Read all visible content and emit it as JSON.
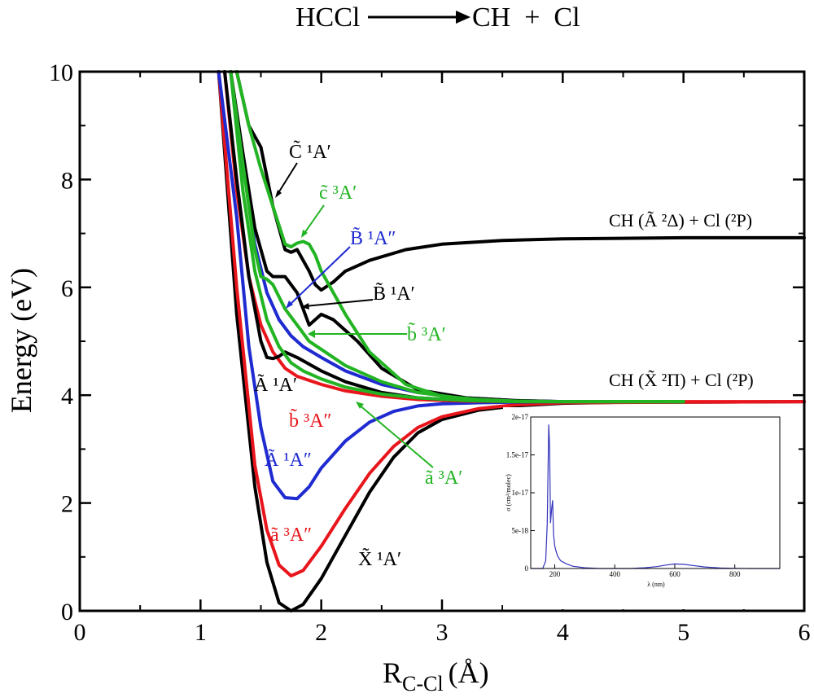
{
  "chart_data": {
    "type": "line",
    "title": "HCCl ⟶ CH + Cl",
    "title_parts": {
      "reactant": "HCCl",
      "products": "CH  +  Cl"
    },
    "xlabel": {
      "main": "R",
      "sub": "C-Cl",
      "unit": "(Å)"
    },
    "ylabel": "Energy (eV)",
    "xlim": [
      0,
      6
    ],
    "ylim": [
      0,
      10
    ],
    "xticks": [
      "0",
      "1",
      "2",
      "3",
      "4",
      "5",
      "6"
    ],
    "yticks": [
      "0",
      "2",
      "4",
      "6",
      "8",
      "10"
    ],
    "grid": false,
    "colors": {
      "black": "#000000",
      "blue": "#1f2bd1",
      "red": "#e8161c",
      "green": "#22b422",
      "inset_line": "#3333bb"
    },
    "series": [
      {
        "label": "X̃ ¹A′",
        "color": "#000000",
        "x": [
          1.15,
          1.3,
          1.45,
          1.55,
          1.65,
          1.75,
          1.85,
          2.0,
          2.2,
          2.4,
          2.6,
          2.8,
          3.0,
          3.3,
          3.6,
          4.0,
          4.5,
          5.0,
          6.0
        ],
        "y": [
          10.0,
          5.5,
          2.3,
          0.9,
          0.15,
          0.0,
          0.12,
          0.6,
          1.4,
          2.2,
          2.85,
          3.3,
          3.55,
          3.72,
          3.8,
          3.85,
          3.87,
          3.87,
          3.88
        ]
      },
      {
        "label": "ã ³A″",
        "color": "#e8161c",
        "x": [
          1.15,
          1.3,
          1.45,
          1.55,
          1.65,
          1.75,
          1.85,
          2.0,
          2.2,
          2.4,
          2.6,
          2.8,
          3.0,
          3.3,
          3.6,
          4.0,
          5.0,
          6.0
        ],
        "y": [
          10.0,
          6.0,
          2.7,
          1.5,
          0.85,
          0.65,
          0.75,
          1.2,
          1.9,
          2.55,
          3.05,
          3.4,
          3.6,
          3.75,
          3.82,
          3.86,
          3.87,
          3.88
        ]
      },
      {
        "label": "Ã ¹A″",
        "color": "#1f2bd1",
        "x": [
          1.15,
          1.3,
          1.4,
          1.5,
          1.6,
          1.7,
          1.8,
          1.9,
          2.0,
          2.2,
          2.4,
          2.6,
          2.8,
          3.0,
          3.3,
          3.6,
          4.0
        ],
        "y": [
          10.0,
          7.3,
          4.9,
          3.4,
          2.4,
          2.1,
          2.08,
          2.3,
          2.65,
          3.15,
          3.5,
          3.7,
          3.8,
          3.84,
          3.86,
          3.87,
          3.88
        ]
      },
      {
        "label": "b̃ ³A″",
        "color": "#e8161c",
        "x": [
          1.2,
          1.3,
          1.4,
          1.5,
          1.6,
          1.7,
          1.8,
          2.0,
          2.2,
          2.5,
          2.8,
          3.2,
          3.6,
          4.0,
          5.0,
          6.0
        ],
        "y": [
          10.0,
          7.8,
          6.2,
          5.3,
          4.8,
          4.5,
          4.35,
          4.2,
          4.08,
          3.98,
          3.92,
          3.89,
          3.88,
          3.88,
          3.88,
          3.88
        ]
      },
      {
        "label": "Ã ¹A′",
        "color": "#000000",
        "x": [
          1.2,
          1.3,
          1.4,
          1.5,
          1.55,
          1.6,
          1.65,
          1.7,
          1.8,
          2.0,
          2.2,
          2.5,
          2.8,
          3.2,
          3.6,
          4.0,
          5.0
        ],
        "y": [
          10.0,
          8.0,
          6.2,
          5.0,
          4.7,
          4.68,
          4.72,
          4.8,
          4.7,
          4.45,
          4.25,
          4.05,
          3.95,
          3.9,
          3.88,
          3.88,
          3.88
        ]
      },
      {
        "label": "ã ³A′",
        "color": "#22b422",
        "x": [
          1.25,
          1.35,
          1.45,
          1.55,
          1.65,
          1.75,
          1.85,
          2.0,
          2.2,
          2.5,
          2.8,
          3.2,
          3.6,
          4.0,
          5.0
        ],
        "y": [
          10.0,
          7.8,
          6.3,
          5.4,
          4.9,
          4.6,
          4.45,
          4.3,
          4.15,
          4.02,
          3.95,
          3.9,
          3.88,
          3.88,
          3.88
        ]
      },
      {
        "label": "B̃ ¹A″",
        "color": "#1f2bd1",
        "x": [
          1.25,
          1.35,
          1.45,
          1.55,
          1.65,
          1.75,
          1.85,
          2.0,
          2.2,
          2.5,
          2.8,
          3.2,
          3.6,
          4.0
        ],
        "y": [
          10.0,
          8.3,
          6.8,
          5.9,
          5.4,
          5.1,
          4.9,
          4.7,
          4.45,
          4.2,
          4.05,
          3.95,
          3.9,
          3.88
        ]
      },
      {
        "label": "B̃ ¹A′",
        "color": "#000000",
        "x": [
          1.25,
          1.35,
          1.45,
          1.55,
          1.6,
          1.7,
          1.8,
          1.85,
          1.9,
          2.0,
          2.1,
          2.3,
          2.5,
          2.8,
          3.2,
          3.6,
          4.0
        ],
        "y": [
          10.0,
          8.5,
          7.1,
          6.3,
          6.2,
          6.2,
          5.9,
          5.6,
          5.3,
          5.5,
          5.4,
          5.0,
          4.5,
          4.1,
          3.95,
          3.9,
          3.88
        ]
      },
      {
        "label": "b̃ ³A′",
        "color": "#22b422",
        "x": [
          1.25,
          1.35,
          1.45,
          1.5,
          1.55,
          1.6,
          1.7,
          1.8,
          1.9,
          2.0,
          2.2,
          2.5,
          2.8,
          3.2,
          3.6,
          4.0,
          5.0
        ],
        "y": [
          10.0,
          8.3,
          6.7,
          6.2,
          6.15,
          6.05,
          5.6,
          5.3,
          5.0,
          4.85,
          4.55,
          4.25,
          4.05,
          3.93,
          3.89,
          3.88,
          3.88
        ]
      },
      {
        "label": "C̃ ¹A′",
        "color": "#000000",
        "x": [
          1.3,
          1.4,
          1.5,
          1.6,
          1.7,
          1.75,
          1.8,
          1.9,
          1.95,
          2.0,
          2.1,
          2.2,
          2.4,
          2.7,
          3.0,
          3.5,
          4.0,
          5.0,
          6.0
        ],
        "y": [
          10.0,
          9.0,
          8.6,
          7.5,
          6.7,
          6.65,
          6.7,
          6.3,
          6.05,
          5.95,
          6.1,
          6.3,
          6.5,
          6.7,
          6.8,
          6.87,
          6.9,
          6.92,
          6.92
        ]
      },
      {
        "label": "c̃ ³A′",
        "color": "#22b422",
        "x": [
          1.3,
          1.4,
          1.5,
          1.6,
          1.7,
          1.75,
          1.8,
          1.85,
          1.9,
          1.95,
          2.0,
          2.1,
          2.2,
          2.4,
          2.7,
          3.0,
          3.4,
          3.8,
          4.2,
          5.0
        ],
        "y": [
          10.0,
          9.0,
          8.2,
          7.5,
          6.8,
          6.75,
          6.82,
          6.85,
          6.8,
          6.6,
          6.3,
          5.9,
          5.5,
          4.8,
          4.2,
          3.98,
          3.9,
          3.88,
          3.88,
          3.88
        ]
      }
    ],
    "asymptote_labels": [
      {
        "species": "CH (Ã ²Δ) + Cl (²P)"
      },
      {
        "species": "CH (X̃ ²Π) + Cl (²P)"
      }
    ],
    "inset": {
      "type": "line",
      "xlabel": "λ (nm)",
      "ylabel": "σ (cm²/molec)",
      "xlim": [
        120,
        950
      ],
      "ylim": [
        0,
        2e-17
      ],
      "xticks": [
        "200",
        "400",
        "600",
        "800"
      ],
      "yticks": [
        "0",
        "5e-18",
        "1e-17",
        "1.5e-17",
        "2e-17"
      ],
      "x": [
        120,
        160,
        170,
        175,
        180,
        183,
        186,
        190,
        193,
        196,
        200,
        205,
        210,
        220,
        240,
        260,
        300,
        350,
        400,
        450,
        500,
        540,
        570,
        600,
        630,
        660,
        700,
        750,
        800,
        860,
        900,
        950
      ],
      "y": [
        0,
        0,
        1e-18,
        6e-18,
        1.9e-17,
        1.6e-17,
        6e-18,
        8e-18,
        9e-18,
        4.5e-18,
        3e-18,
        2.2e-18,
        1.6e-18,
        1e-18,
        6e-19,
        3e-19,
        1e-19,
        0,
        0,
        0,
        1e-19,
        2.5e-19,
        4.5e-19,
        6e-19,
        5.5e-19,
        4e-19,
        2e-19,
        8e-20,
        2e-20,
        0,
        0,
        0
      ]
    }
  }
}
